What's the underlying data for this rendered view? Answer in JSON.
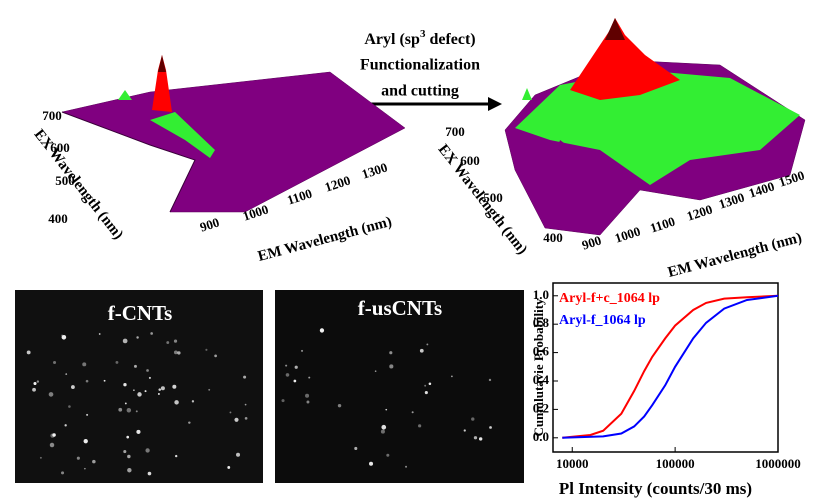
{
  "arrow_label": {
    "prefix": "Aryl (sp",
    "sup": "3",
    "suffix": " defect)",
    "line2": "Functionalization",
    "line3": "and cutting"
  },
  "surface_left": {
    "xlabel": "EM Wavelength (nm)",
    "ylabel": "EX Wavelength (nm)",
    "xticks": [
      900,
      1000,
      1100,
      1200,
      1300
    ],
    "yticks": [
      700,
      600,
      500,
      400
    ]
  },
  "surface_right": {
    "xlabel": "EM Wavelength (nm)",
    "ylabel": "EX Wavelength (nm)",
    "xticks": [
      900,
      1000,
      1100,
      1200,
      1300,
      1400,
      1500
    ],
    "yticks": [
      700,
      600,
      500,
      400
    ]
  },
  "images": [
    {
      "label": "f-CNTs"
    },
    {
      "label": "f-usCNTs"
    }
  ],
  "chart_data": {
    "type": "line",
    "xlabel": "Pl Intensity (counts/30 ms)",
    "ylabel": "Cumulutavie Probability",
    "xscale": "log",
    "xlim": [
      6500,
      1000000
    ],
    "xticks": [
      10000,
      100000,
      1000000
    ],
    "ylim": [
      -0.1,
      1.09
    ],
    "yticks": [
      {
        "value": 0,
        "label": "0.0"
      },
      0.2,
      0.4,
      0.6,
      0.8,
      {
        "value": 1,
        "label": "1.0"
      }
    ],
    "legend": "upper left",
    "series": [
      {
        "name": "Aryl-f+c_1064 lp",
        "color": "#ff0000",
        "x": [
          8000,
          15000,
          20000,
          30000,
          40000,
          50000,
          60000,
          80000,
          100000,
          150000,
          200000,
          300000,
          500000,
          1000000
        ],
        "values": [
          0,
          0.02,
          0.05,
          0.17,
          0.33,
          0.47,
          0.57,
          0.7,
          0.79,
          0.9,
          0.95,
          0.98,
          0.99,
          1.0
        ]
      },
      {
        "name": "Aryl-f_1064 lp",
        "color": "#0000ff",
        "x": [
          8000,
          20000,
          30000,
          40000,
          50000,
          60000,
          80000,
          100000,
          150000,
          200000,
          300000,
          500000,
          1000000
        ],
        "values": [
          0,
          0.01,
          0.03,
          0.08,
          0.15,
          0.23,
          0.37,
          0.5,
          0.7,
          0.81,
          0.91,
          0.97,
          1.0
        ]
      }
    ]
  }
}
